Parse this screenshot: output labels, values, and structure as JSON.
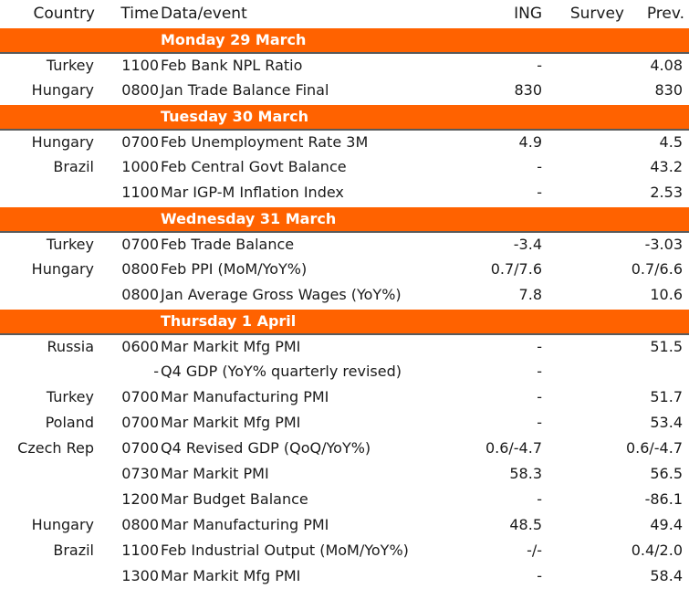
{
  "header": {
    "country": "Country",
    "time": "Time",
    "event": "Data/event",
    "ing": "ING",
    "survey": "Survey",
    "prev": "Prev."
  },
  "days": [
    {
      "label": "Monday 29 March",
      "rows": [
        {
          "country": "Turkey",
          "time": "1100",
          "event": "Feb Bank NPL Ratio",
          "ing": "-",
          "survey": "",
          "prev": "4.08"
        },
        {
          "country": "Hungary",
          "time": "0800",
          "event": "Jan Trade Balance Final",
          "ing": "830",
          "survey": "",
          "prev": "830"
        }
      ]
    },
    {
      "label": "Tuesday 30 March",
      "rows": [
        {
          "country": "Hungary",
          "time": "0700",
          "event": "Feb Unemployment Rate 3M",
          "ing": "4.9",
          "survey": "",
          "prev": "4.5"
        },
        {
          "country": "Brazil",
          "time": "1000",
          "event": "Feb Central Govt Balance",
          "ing": "-",
          "survey": "",
          "prev": "43.2"
        },
        {
          "country": "",
          "time": "1100",
          "event": "Mar IGP-M Inflation Index",
          "ing": "-",
          "survey": "",
          "prev": "2.53"
        }
      ]
    },
    {
      "label": "Wednesday 31 March",
      "rows": [
        {
          "country": "Turkey",
          "time": "0700",
          "event": "Feb Trade Balance",
          "ing": "-3.4",
          "survey": "",
          "prev": "-3.03"
        },
        {
          "country": "Hungary",
          "time": "0800",
          "event": "Feb PPI (MoM/YoY%)",
          "ing": "0.7/7.6",
          "survey": "",
          "prev": "0.7/6.6"
        },
        {
          "country": "",
          "time": "0800",
          "event": "Jan Average Gross Wages (YoY%)",
          "ing": "7.8",
          "survey": "",
          "prev": "10.6"
        }
      ]
    },
    {
      "label": "Thursday 1 April",
      "rows": [
        {
          "country": "Russia",
          "time": "0600",
          "event": "Mar Markit Mfg PMI",
          "ing": "-",
          "survey": "",
          "prev": "51.5"
        },
        {
          "country": "",
          "time": "-",
          "event": "Q4 GDP (YoY% quarterly revised)",
          "ing": "-",
          "survey": "",
          "prev": ""
        },
        {
          "country": "Turkey",
          "time": "0700",
          "event": "Mar Manufacturing PMI",
          "ing": "-",
          "survey": "",
          "prev": "51.7"
        },
        {
          "country": "Poland",
          "time": "0700",
          "event": "Mar Markit Mfg PMI",
          "ing": "-",
          "survey": "",
          "prev": "53.4"
        },
        {
          "country": "Czech Rep",
          "time": "0700",
          "event": "Q4 Revised GDP (QoQ/YoY%)",
          "ing": "0.6/-4.7",
          "survey": "",
          "prev": "0.6/-4.7"
        },
        {
          "country": "",
          "time": "0730",
          "event": "Mar Markit PMI",
          "ing": "58.3",
          "survey": "",
          "prev": "56.5"
        },
        {
          "country": "",
          "time": "1200",
          "event": "Mar Budget Balance",
          "ing": "-",
          "survey": "",
          "prev": "-86.1"
        },
        {
          "country": "Hungary",
          "time": "0800",
          "event": "Mar Manufacturing PMI",
          "ing": "48.5",
          "survey": "",
          "prev": "49.4"
        },
        {
          "country": "Brazil",
          "time": "1100",
          "event": "Feb Industrial Output (MoM/YoY%)",
          "ing": "-/-",
          "survey": "",
          "prev": "0.4/2.0"
        },
        {
          "country": "",
          "time": "1300",
          "event": "Mar Markit Mfg PMI",
          "ing": "-",
          "survey": "",
          "prev": "58.4"
        }
      ]
    }
  ]
}
